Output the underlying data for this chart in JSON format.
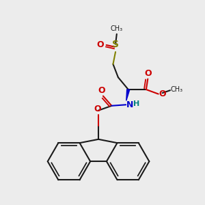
{
  "bg_color": "#ececec",
  "bond_color": "#1a1a1a",
  "S_color": "#808000",
  "O_color": "#cc0000",
  "N_color": "#0000cc",
  "H_color": "#008080",
  "lw": 1.5,
  "fs": 9,
  "fs_sm": 8,
  "xlim": [
    0,
    10
  ],
  "ylim": [
    0,
    10
  ]
}
